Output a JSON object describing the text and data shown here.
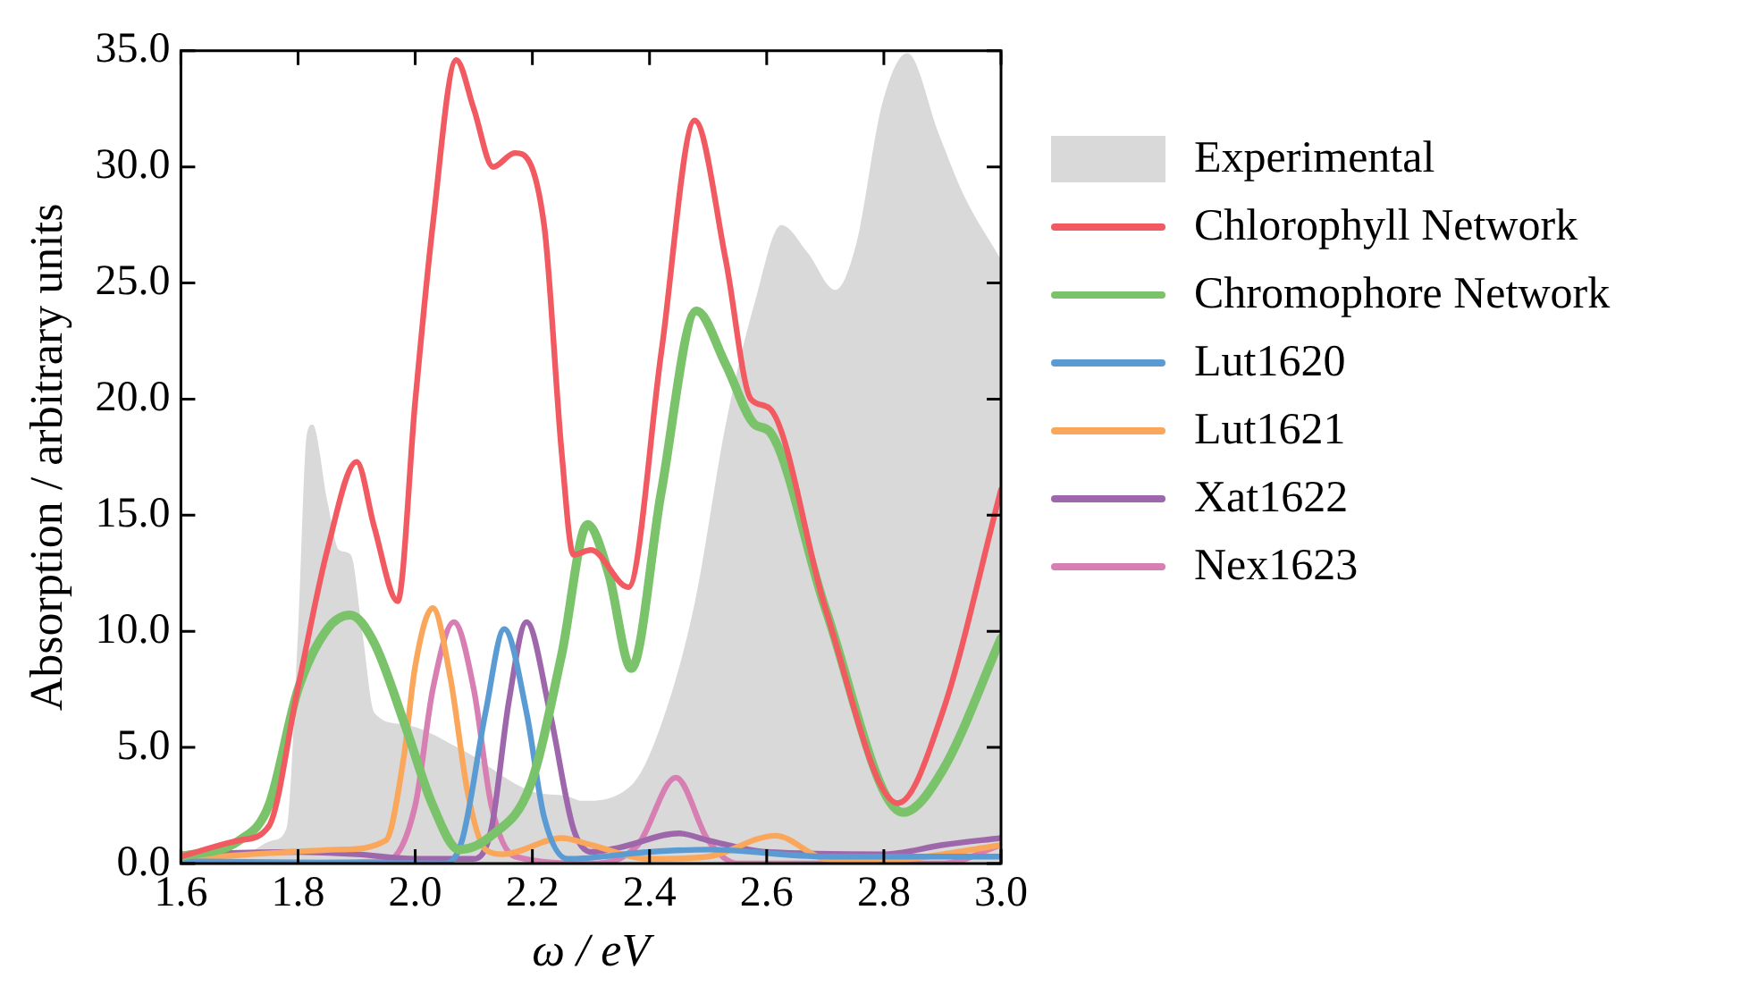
{
  "chart_data": {
    "type": "line",
    "xlabel": "ω / eV",
    "ylabel": "Absorption / arbitrary units",
    "xlim": [
      1.6,
      3.0
    ],
    "ylim": [
      0,
      35
    ],
    "xticks": [
      1.6,
      1.8,
      {
        "value": 2.0,
        "label": "2.0"
      },
      2.2,
      2.4,
      2.6,
      2.8,
      {
        "value": 3.0,
        "label": "3.0"
      }
    ],
    "yticks": [
      {
        "value": 0,
        "label": "0.0"
      },
      {
        "value": 5,
        "label": "5.0"
      },
      {
        "value": 10,
        "label": "10.0"
      },
      {
        "value": 15,
        "label": "15.0"
      },
      {
        "value": 20,
        "label": "20.0"
      },
      {
        "value": 25,
        "label": "25.0"
      },
      {
        "value": 30,
        "label": "30.0"
      },
      {
        "value": 35,
        "label": "35.0"
      }
    ],
    "grid": false,
    "legend": "right",
    "marker": "none",
    "line_style": "solid",
    "series": [
      {
        "name": "Experimental",
        "type": "area",
        "color": "#d9d9d9",
        "x": [
          1.6,
          1.7,
          1.757,
          1.78,
          1.8,
          1.815,
          1.825,
          1.85,
          1.87,
          1.89,
          1.91,
          1.93,
          1.98,
          2.08,
          2.2,
          2.26,
          2.284,
          2.37,
          2.42,
          2.477,
          2.53,
          2.58,
          2.625,
          2.67,
          2.717,
          2.753,
          2.797,
          2.84,
          2.894,
          2.936,
          3.0
        ],
        "values": [
          0.2,
          0.3,
          1.0,
          1.5,
          10,
          18.5,
          18.9,
          15.6,
          13.5,
          13.3,
          9.9,
          6.5,
          6.0,
          4.9,
          3.1,
          2.9,
          2.7,
          3.4,
          6.0,
          11.2,
          18.9,
          24.2,
          27.5,
          26.3,
          24.7,
          26.7,
          32.7,
          34.9,
          31.4,
          28.8,
          26.0
        ]
      },
      {
        "name": "Chlorophyll Network",
        "type": "line",
        "color": "#f15a60",
        "x": [
          1.6,
          1.7,
          1.75,
          1.8,
          1.85,
          1.9,
          1.93,
          1.97,
          2.0,
          2.03,
          2.07,
          2.1,
          2.133,
          2.17,
          2.22,
          2.25,
          2.27,
          2.3,
          2.364,
          2.42,
          2.477,
          2.53,
          2.573,
          2.605,
          2.7,
          2.824,
          2.9,
          3.0
        ],
        "values": [
          0.3,
          1.0,
          1.6,
          7.6,
          13.5,
          17.3,
          14.5,
          11.3,
          19.9,
          27.5,
          34.6,
          32.5,
          30.0,
          30.6,
          27.5,
          17.7,
          13.3,
          13.5,
          11.9,
          22.0,
          32.0,
          26.0,
          20.0,
          19.6,
          11.0,
          2.6,
          6.5,
          16.1
        ]
      },
      {
        "name": "Chromophore Network",
        "type": "line",
        "color": "#7ac36a",
        "x": [
          1.6,
          1.7,
          1.75,
          1.8,
          1.85,
          1.889,
          1.93,
          1.982,
          2.03,
          2.075,
          2.13,
          2.197,
          2.25,
          2.294,
          2.33,
          2.369,
          2.42,
          2.48,
          2.53,
          2.58,
          2.605,
          2.7,
          2.833,
          2.9,
          3.0
        ],
        "values": [
          0.3,
          1.0,
          2.5,
          7.5,
          10.1,
          10.7,
          9.5,
          6.0,
          2.5,
          0.6,
          1.2,
          3.4,
          9.0,
          14.6,
          12.5,
          8.4,
          16.0,
          23.8,
          21.5,
          18.9,
          18.6,
          11.0,
          2.2,
          4.0,
          9.7
        ]
      },
      {
        "name": "Lut1620",
        "type": "line",
        "color": "#5a9bd4",
        "x": [
          1.6,
          2.05,
          2.08,
          2.12,
          2.152,
          2.19,
          2.22,
          2.26,
          2.4,
          2.5,
          2.7,
          3.0
        ],
        "values": [
          0.1,
          0,
          1.0,
          6.5,
          10.1,
          6.5,
          2.0,
          0.2,
          0.5,
          0.6,
          0.3,
          0.3
        ]
      },
      {
        "name": "Lut1621",
        "type": "line",
        "color": "#faa75b",
        "x": [
          1.6,
          1.87,
          1.95,
          1.98,
          2.0,
          2.03,
          2.06,
          2.09,
          2.12,
          2.15,
          2.25,
          2.3,
          2.4,
          2.5,
          2.615,
          2.7,
          2.8,
          2.9,
          3.0
        ],
        "values": [
          0.2,
          0.6,
          1.0,
          4.5,
          8.5,
          11.0,
          8.0,
          3.0,
          0.6,
          0.4,
          1.1,
          0.8,
          0.2,
          0.3,
          1.2,
          0.2,
          0.1,
          0.4,
          0.8
        ]
      },
      {
        "name": "Xat1622",
        "type": "line",
        "color": "#9e67ab",
        "x": [
          1.6,
          1.8,
          1.9,
          2.0,
          2.1,
          2.13,
          2.16,
          2.19,
          2.23,
          2.27,
          2.3,
          2.35,
          2.45,
          2.5,
          2.6,
          2.8,
          2.9,
          3.0
        ],
        "values": [
          0.4,
          0.5,
          0.4,
          0.2,
          0.2,
          1.5,
          7.0,
          10.4,
          6.5,
          1.5,
          0.5,
          0.7,
          1.3,
          1.0,
          0.5,
          0.4,
          0.8,
          1.1
        ]
      },
      {
        "name": "Nex1623",
        "type": "line",
        "color": "#d77fb3",
        "x": [
          1.6,
          1.95,
          2.0,
          2.03,
          2.066,
          2.1,
          2.13,
          2.17,
          2.3,
          2.38,
          2.445,
          2.5,
          2.55,
          2.9,
          3.0
        ],
        "values": [
          0,
          0.1,
          2.5,
          7.5,
          10.4,
          7.5,
          2.5,
          0.3,
          0,
          0.8,
          3.7,
          1.0,
          0,
          0,
          0.8
        ]
      }
    ]
  }
}
